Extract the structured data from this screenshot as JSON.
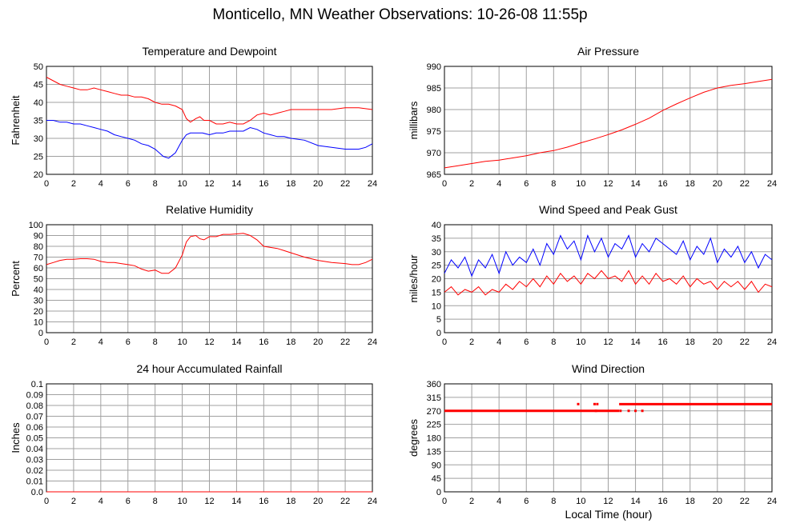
{
  "title": "Monticello, MN Weather Observations: 10-26-08 11:55p",
  "x_axis_label": "Local Time (hour)",
  "chart_data": [
    {
      "type": "line",
      "title": "Temperature and Dewpoint",
      "ylabel": "Fahrenheit",
      "xlabel": "",
      "xlim": [
        0,
        24
      ],
      "ylim": [
        20,
        50
      ],
      "xticks": [
        0,
        2,
        4,
        6,
        8,
        10,
        12,
        14,
        16,
        18,
        20,
        22,
        24
      ],
      "yticks": [
        20,
        25,
        30,
        35,
        40,
        45,
        50
      ],
      "grid": true,
      "series": [
        {
          "color": "#ff0000",
          "x": [
            0,
            0.5,
            1,
            1.5,
            2,
            2.5,
            3,
            3.5,
            4,
            4.5,
            5,
            5.5,
            6,
            6.5,
            7,
            7.5,
            8,
            8.5,
            9,
            9.5,
            10,
            10.3,
            10.6,
            11,
            11.3,
            11.6,
            12,
            12.5,
            13,
            13.5,
            14,
            14.5,
            15,
            15.5,
            16,
            16.5,
            17,
            17.5,
            18,
            19,
            20,
            21,
            22,
            23,
            24
          ],
          "y": [
            47,
            46,
            45,
            44.5,
            44,
            43.5,
            43.5,
            44,
            43.5,
            43,
            42.5,
            42,
            42,
            41.5,
            41.5,
            41,
            40,
            39.5,
            39.5,
            39,
            38,
            35.5,
            34.5,
            35.5,
            36,
            35,
            35,
            34,
            34,
            34.5,
            34,
            34,
            35,
            36.5,
            37,
            36.5,
            37,
            37.5,
            38,
            38,
            38,
            38,
            38.5,
            38.5,
            38
          ]
        },
        {
          "color": "#0000ff",
          "x": [
            0,
            0.5,
            1,
            1.5,
            2,
            2.5,
            3,
            3.5,
            4,
            4.5,
            5,
            5.5,
            6,
            6.5,
            7,
            7.5,
            8,
            8.3,
            8.6,
            9,
            9.5,
            10,
            10.3,
            10.6,
            11,
            11.5,
            12,
            12.5,
            13,
            13.5,
            14,
            14.5,
            15,
            15.5,
            16,
            16.5,
            17,
            17.5,
            18,
            19,
            20,
            21,
            22,
            22.5,
            23,
            23.5,
            24
          ],
          "y": [
            35,
            35,
            34.5,
            34.5,
            34,
            34,
            33.5,
            33,
            32.5,
            32,
            31,
            30.5,
            30,
            29.5,
            28.5,
            28,
            27,
            26,
            25,
            24.5,
            26,
            29.5,
            31,
            31.5,
            31.5,
            31.5,
            31,
            31.5,
            31.5,
            32,
            32,
            32,
            33,
            32.5,
            31.5,
            31,
            30.5,
            30.5,
            30,
            29.5,
            28,
            27.5,
            27,
            27,
            27,
            27.5,
            28.5
          ]
        }
      ]
    },
    {
      "type": "line",
      "title": "Air Pressure",
      "ylabel": "millibars",
      "xlabel": "",
      "xlim": [
        0,
        24
      ],
      "ylim": [
        965,
        990
      ],
      "xticks": [
        0,
        2,
        4,
        6,
        8,
        10,
        12,
        14,
        16,
        18,
        20,
        22,
        24
      ],
      "yticks": [
        965,
        970,
        975,
        980,
        985,
        990
      ],
      "grid": true,
      "series": [
        {
          "color": "#ff0000",
          "x": [
            0,
            1,
            2,
            3,
            4,
            5,
            6,
            7,
            8,
            9,
            10,
            11,
            12,
            13,
            14,
            15,
            16,
            17,
            18,
            19,
            20,
            21,
            22,
            23,
            24
          ],
          "y": [
            966.5,
            967,
            967.5,
            968,
            968.3,
            968.8,
            969.3,
            970,
            970.5,
            971.3,
            972.3,
            973.2,
            974.2,
            975.3,
            976.6,
            978,
            979.8,
            981.3,
            982.7,
            984,
            985,
            985.6,
            986,
            986.5,
            987
          ]
        }
      ]
    },
    {
      "type": "line",
      "title": "Relative Humidity",
      "ylabel": "Percent",
      "xlabel": "",
      "xlim": [
        0,
        24
      ],
      "ylim": [
        0,
        100
      ],
      "xticks": [
        0,
        2,
        4,
        6,
        8,
        10,
        12,
        14,
        16,
        18,
        20,
        22,
        24
      ],
      "yticks": [
        0,
        10,
        20,
        30,
        40,
        50,
        60,
        70,
        80,
        90,
        100
      ],
      "grid": true,
      "series": [
        {
          "color": "#ff0000",
          "x": [
            0,
            0.5,
            1,
            1.5,
            2,
            2.5,
            3,
            3.5,
            4,
            4.5,
            5,
            5.5,
            6,
            6.5,
            7,
            7.5,
            8,
            8.5,
            9,
            9.5,
            10,
            10.3,
            10.6,
            11,
            11.3,
            11.6,
            12,
            12.5,
            13,
            13.5,
            14,
            14.5,
            15,
            15.5,
            16,
            16.5,
            17,
            17.5,
            18,
            19,
            20,
            21,
            22,
            22.5,
            23,
            23.5,
            24
          ],
          "y": [
            63,
            65,
            67,
            68,
            68,
            68.5,
            68.5,
            68,
            66,
            65,
            65,
            64,
            63,
            62,
            59,
            57,
            58,
            55,
            55,
            60,
            72,
            84,
            89,
            90,
            87,
            86,
            89,
            89,
            91,
            91,
            91.5,
            92,
            90,
            86,
            80,
            79,
            78,
            76,
            74,
            70,
            67,
            65,
            64,
            63,
            63,
            65,
            68
          ]
        }
      ]
    },
    {
      "type": "line",
      "title": "Wind Speed and Peak Gust",
      "ylabel": "miles/hour",
      "xlabel": "",
      "xlim": [
        0,
        24
      ],
      "ylim": [
        0,
        40
      ],
      "xticks": [
        0,
        2,
        4,
        6,
        8,
        10,
        12,
        14,
        16,
        18,
        20,
        22,
        24
      ],
      "yticks": [
        0,
        5,
        10,
        15,
        20,
        25,
        30,
        35,
        40
      ],
      "grid": true,
      "series": [
        {
          "color": "#0000ff",
          "x": [
            0,
            0.5,
            1,
            1.5,
            2,
            2.5,
            3,
            3.5,
            4,
            4.5,
            5,
            5.5,
            6,
            6.5,
            7,
            7.5,
            8,
            8.5,
            9,
            9.5,
            10,
            10.5,
            11,
            11.5,
            12,
            12.5,
            13,
            13.5,
            14,
            14.5,
            15,
            15.5,
            16,
            16.5,
            17,
            17.5,
            18,
            18.5,
            19,
            19.5,
            20,
            20.5,
            21,
            21.5,
            22,
            22.5,
            23,
            23.5,
            24
          ],
          "y": [
            22,
            27,
            24,
            28,
            21,
            27,
            24,
            29,
            22,
            30,
            25,
            28,
            26,
            31,
            25,
            33,
            29,
            36,
            31,
            34,
            27,
            36,
            30,
            35,
            28,
            33,
            31,
            36,
            28,
            33,
            30,
            35,
            33,
            31,
            29,
            34,
            27,
            32,
            29,
            35,
            26,
            31,
            28,
            32,
            26,
            30,
            24,
            29,
            27
          ]
        },
        {
          "color": "#ff0000",
          "x": [
            0,
            0.5,
            1,
            1.5,
            2,
            2.5,
            3,
            3.5,
            4,
            4.5,
            5,
            5.5,
            6,
            6.5,
            7,
            7.5,
            8,
            8.5,
            9,
            9.5,
            10,
            10.5,
            11,
            11.5,
            12,
            12.5,
            13,
            13.5,
            14,
            14.5,
            15,
            15.5,
            16,
            16.5,
            17,
            17.5,
            18,
            18.5,
            19,
            19.5,
            20,
            20.5,
            21,
            21.5,
            22,
            22.5,
            23,
            23.5,
            24
          ],
          "y": [
            15,
            17,
            14,
            16,
            15,
            17,
            14,
            16,
            15,
            18,
            16,
            19,
            17,
            20,
            17,
            21,
            18,
            22,
            19,
            21,
            18,
            22,
            20,
            23,
            20,
            21,
            19,
            23,
            18,
            21,
            18,
            22,
            19,
            20,
            18,
            21,
            17,
            20,
            18,
            19,
            16,
            19,
            17,
            19,
            16,
            19,
            15,
            18,
            17
          ]
        }
      ]
    },
    {
      "type": "line",
      "title": "24 hour Accumulated Rainfall",
      "ylabel": "Inches",
      "xlabel": "",
      "xlim": [
        0,
        24
      ],
      "ylim": [
        0,
        0.1
      ],
      "xticks": [
        0,
        2,
        4,
        6,
        8,
        10,
        12,
        14,
        16,
        18,
        20,
        22,
        24
      ],
      "yticks": [
        0,
        0.01,
        0.02,
        0.03,
        0.04,
        0.05,
        0.06,
        0.07,
        0.08,
        0.09,
        0.1
      ],
      "ytick_labels": [
        "0.0",
        "0.01",
        "0.02",
        "0.03",
        "0.04",
        "0.05",
        "0.06",
        "0.07",
        "0.08",
        "0.09",
        "0.1"
      ],
      "grid": true,
      "series": [
        {
          "color": "#ff0000",
          "x": [
            0,
            24
          ],
          "y": [
            0,
            0
          ]
        }
      ]
    },
    {
      "type": "scatter",
      "title": "Wind Direction",
      "ylabel": "degrees",
      "xlabel": "Local Time (hour)",
      "xlim": [
        0,
        24
      ],
      "ylim": [
        0,
        360
      ],
      "xticks": [
        0,
        2,
        4,
        6,
        8,
        10,
        12,
        14,
        16,
        18,
        20,
        22,
        24
      ],
      "yticks": [
        0,
        45,
        90,
        135,
        180,
        225,
        270,
        315,
        360
      ],
      "grid": true,
      "series": [
        {
          "color": "#ff0000",
          "segments": [
            {
              "x_start": 0,
              "x_end": 12.8,
              "y": 270
            },
            {
              "x_start": 12.8,
              "x_end": 24,
              "y": 292.5
            }
          ],
          "points": [
            {
              "x": 9.8,
              "y": 292.5
            },
            {
              "x": 11.0,
              "y": 292.5
            },
            {
              "x": 11.2,
              "y": 292.5
            },
            {
              "x": 11.1,
              "y": 270
            },
            {
              "x": 13.5,
              "y": 270
            },
            {
              "x": 14.0,
              "y": 270
            },
            {
              "x": 14.5,
              "y": 270
            },
            {
              "x": 12.9,
              "y": 270
            }
          ]
        }
      ]
    }
  ]
}
